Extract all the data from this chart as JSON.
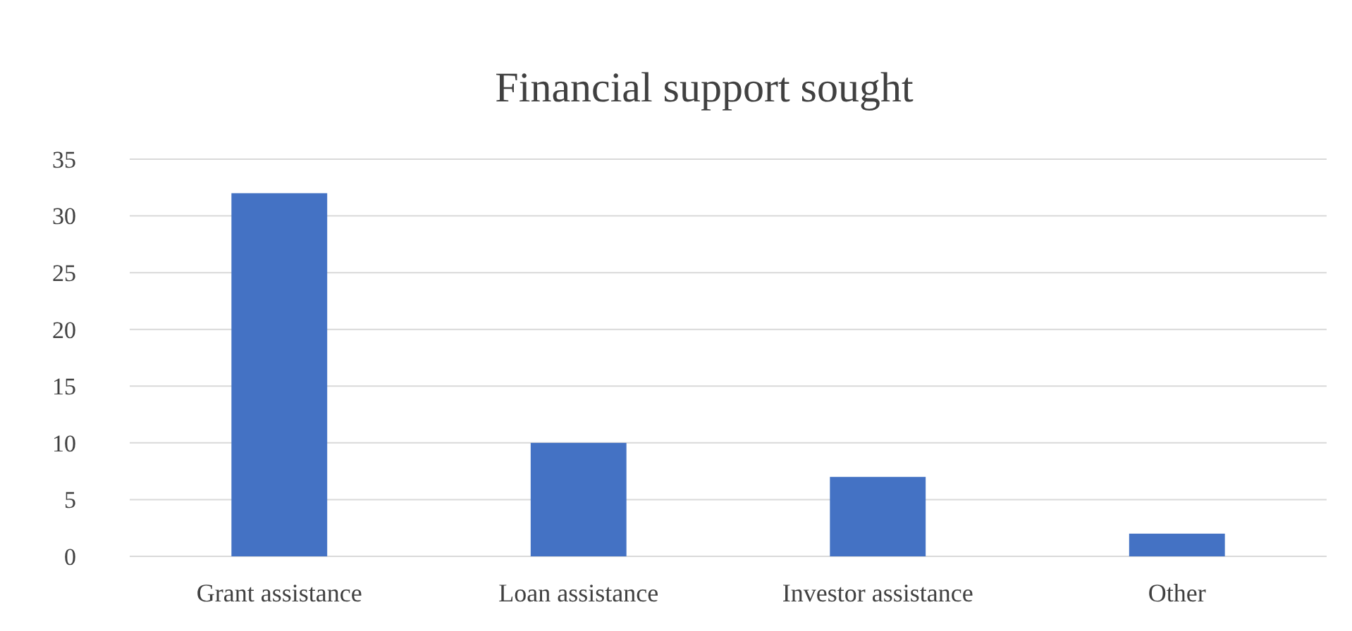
{
  "chart_data": {
    "type": "bar",
    "title": "Financial support sought",
    "categories": [
      "Grant assistance",
      "Loan assistance",
      "Investor assistance",
      "Other"
    ],
    "values": [
      32,
      10,
      7,
      2
    ],
    "color": "#4472c4",
    "ylim": [
      0,
      35
    ],
    "yticks": [
      0,
      5,
      10,
      15,
      20,
      25,
      30,
      35
    ],
    "grid": "y"
  }
}
